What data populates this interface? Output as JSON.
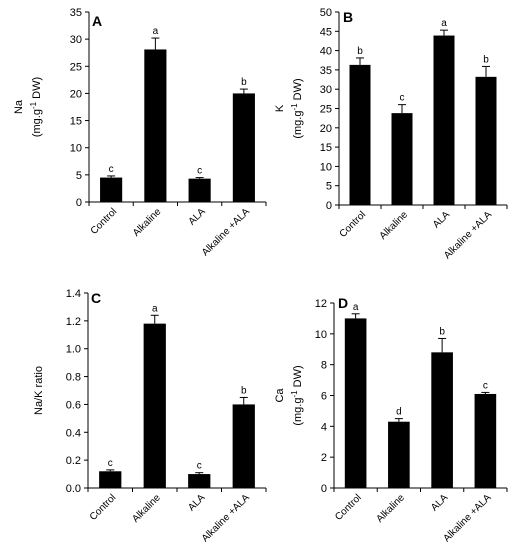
{
  "chart_data": [
    {
      "type": "bar",
      "panel_label": "A",
      "categories": [
        "Control",
        "Alkaline",
        "ALA",
        "Alkaline +ALA"
      ],
      "values": [
        4.5,
        28.1,
        4.3,
        20.0
      ],
      "errors": [
        0.3,
        2.1,
        0.2,
        0.8
      ],
      "letters": [
        "c",
        "a",
        "c",
        "b"
      ],
      "ylabel_line1": "Na",
      "ylabel_line2": "(mg.g",
      "ylabel_sup": "-1",
      "ylabel_line2_end": " DW)",
      "ylim": [
        0,
        35
      ],
      "yticks": [
        0,
        5,
        10,
        15,
        20,
        25,
        30,
        35
      ],
      "ytick_labels": [
        "0",
        "5",
        "10",
        "15",
        "20",
        "25",
        "30",
        "35"
      ],
      "bar_color": "#000000",
      "grid": false
    },
    {
      "type": "bar",
      "panel_label": "B",
      "categories": [
        "Control",
        "Alkaline",
        "ALA",
        "Alkaline +ALA"
      ],
      "values": [
        36.3,
        23.8,
        43.9,
        33.2
      ],
      "errors": [
        1.8,
        2.2,
        1.4,
        2.7
      ],
      "letters": [
        "b",
        "c",
        "a",
        "b"
      ],
      "ylabel_line1": "K",
      "ylabel_line2": "(mg.g",
      "ylabel_sup": "-1",
      "ylabel_line2_end": " DW)",
      "ylim": [
        0,
        50
      ],
      "yticks": [
        0,
        5,
        10,
        15,
        20,
        25,
        30,
        35,
        40,
        45,
        50
      ],
      "ytick_labels": [
        "0",
        "5",
        "10",
        "15",
        "20",
        "25",
        "30",
        "35",
        "40",
        "45",
        "50"
      ],
      "bar_color": "#000000",
      "grid": false
    },
    {
      "type": "bar",
      "panel_label": "C",
      "categories": [
        "Control",
        "Alkaline",
        "ALA",
        "Alkaline +ALA"
      ],
      "values": [
        0.12,
        1.18,
        0.1,
        0.6
      ],
      "errors": [
        0.01,
        0.06,
        0.01,
        0.05
      ],
      "letters": [
        "c",
        "a",
        "c",
        "b"
      ],
      "ylabel_line1": "Na/K ratio",
      "ylim": [
        0,
        1.4
      ],
      "yticks": [
        0,
        0.2,
        0.4,
        0.6,
        0.8,
        1.0,
        1.2,
        1.4
      ],
      "ytick_labels": [
        "0.0",
        "0.2",
        "0.4",
        "0.6",
        "0.8",
        "1.0",
        "1.2",
        "1.4"
      ],
      "bar_color": "#000000",
      "grid": false
    },
    {
      "type": "bar",
      "panel_label": "D",
      "categories": [
        "Control",
        "Alkaline",
        "ALA",
        "Alkaline +ALA"
      ],
      "values": [
        11.0,
        4.3,
        8.8,
        6.1
      ],
      "errors": [
        0.3,
        0.2,
        0.9,
        0.1
      ],
      "letters": [
        "a",
        "d",
        "b",
        "c"
      ],
      "ylabel_line1": "Ca",
      "ylabel_line2": "(mg.g",
      "ylabel_sup": "-1",
      "ylabel_line2_end": " DW)",
      "ylim": [
        0,
        12
      ],
      "yticks": [
        0,
        2,
        4,
        6,
        8,
        10,
        12
      ],
      "ytick_labels": [
        "0",
        "2",
        "4",
        "6",
        "8",
        "10",
        "12"
      ],
      "bar_color": "#000000",
      "grid": false
    }
  ]
}
